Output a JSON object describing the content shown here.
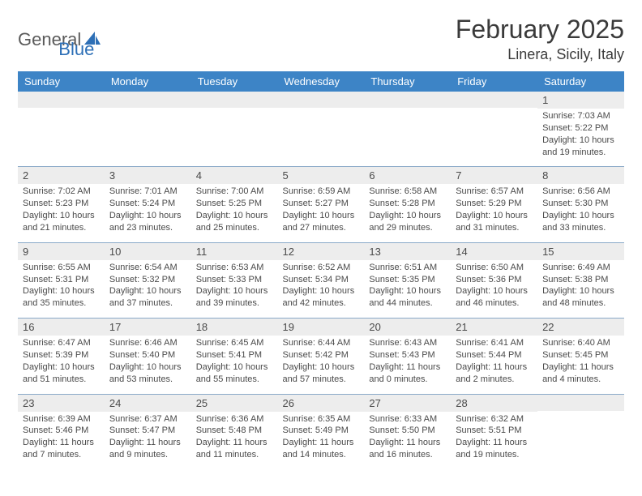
{
  "logo": {
    "part1": "General",
    "part2": "Blue"
  },
  "title": "February 2025",
  "location": "Linera, Sicily, Italy",
  "colors": {
    "header_bg": "#3d84c6",
    "header_fg": "#ffffff",
    "daynum_bg": "#ededed",
    "rule": "#8aa9c8",
    "logo_blue": "#2d6fb6",
    "logo_gray": "#5a5a5a"
  },
  "day_names": [
    "Sunday",
    "Monday",
    "Tuesday",
    "Wednesday",
    "Thursday",
    "Friday",
    "Saturday"
  ],
  "weeks": [
    [
      {
        "n": "",
        "sr": "",
        "ss": "",
        "dl": ""
      },
      {
        "n": "",
        "sr": "",
        "ss": "",
        "dl": ""
      },
      {
        "n": "",
        "sr": "",
        "ss": "",
        "dl": ""
      },
      {
        "n": "",
        "sr": "",
        "ss": "",
        "dl": ""
      },
      {
        "n": "",
        "sr": "",
        "ss": "",
        "dl": ""
      },
      {
        "n": "",
        "sr": "",
        "ss": "",
        "dl": ""
      },
      {
        "n": "1",
        "sr": "Sunrise: 7:03 AM",
        "ss": "Sunset: 5:22 PM",
        "dl": "Daylight: 10 hours and 19 minutes."
      }
    ],
    [
      {
        "n": "2",
        "sr": "Sunrise: 7:02 AM",
        "ss": "Sunset: 5:23 PM",
        "dl": "Daylight: 10 hours and 21 minutes."
      },
      {
        "n": "3",
        "sr": "Sunrise: 7:01 AM",
        "ss": "Sunset: 5:24 PM",
        "dl": "Daylight: 10 hours and 23 minutes."
      },
      {
        "n": "4",
        "sr": "Sunrise: 7:00 AM",
        "ss": "Sunset: 5:25 PM",
        "dl": "Daylight: 10 hours and 25 minutes."
      },
      {
        "n": "5",
        "sr": "Sunrise: 6:59 AM",
        "ss": "Sunset: 5:27 PM",
        "dl": "Daylight: 10 hours and 27 minutes."
      },
      {
        "n": "6",
        "sr": "Sunrise: 6:58 AM",
        "ss": "Sunset: 5:28 PM",
        "dl": "Daylight: 10 hours and 29 minutes."
      },
      {
        "n": "7",
        "sr": "Sunrise: 6:57 AM",
        "ss": "Sunset: 5:29 PM",
        "dl": "Daylight: 10 hours and 31 minutes."
      },
      {
        "n": "8",
        "sr": "Sunrise: 6:56 AM",
        "ss": "Sunset: 5:30 PM",
        "dl": "Daylight: 10 hours and 33 minutes."
      }
    ],
    [
      {
        "n": "9",
        "sr": "Sunrise: 6:55 AM",
        "ss": "Sunset: 5:31 PM",
        "dl": "Daylight: 10 hours and 35 minutes."
      },
      {
        "n": "10",
        "sr": "Sunrise: 6:54 AM",
        "ss": "Sunset: 5:32 PM",
        "dl": "Daylight: 10 hours and 37 minutes."
      },
      {
        "n": "11",
        "sr": "Sunrise: 6:53 AM",
        "ss": "Sunset: 5:33 PM",
        "dl": "Daylight: 10 hours and 39 minutes."
      },
      {
        "n": "12",
        "sr": "Sunrise: 6:52 AM",
        "ss": "Sunset: 5:34 PM",
        "dl": "Daylight: 10 hours and 42 minutes."
      },
      {
        "n": "13",
        "sr": "Sunrise: 6:51 AM",
        "ss": "Sunset: 5:35 PM",
        "dl": "Daylight: 10 hours and 44 minutes."
      },
      {
        "n": "14",
        "sr": "Sunrise: 6:50 AM",
        "ss": "Sunset: 5:36 PM",
        "dl": "Daylight: 10 hours and 46 minutes."
      },
      {
        "n": "15",
        "sr": "Sunrise: 6:49 AM",
        "ss": "Sunset: 5:38 PM",
        "dl": "Daylight: 10 hours and 48 minutes."
      }
    ],
    [
      {
        "n": "16",
        "sr": "Sunrise: 6:47 AM",
        "ss": "Sunset: 5:39 PM",
        "dl": "Daylight: 10 hours and 51 minutes."
      },
      {
        "n": "17",
        "sr": "Sunrise: 6:46 AM",
        "ss": "Sunset: 5:40 PM",
        "dl": "Daylight: 10 hours and 53 minutes."
      },
      {
        "n": "18",
        "sr": "Sunrise: 6:45 AM",
        "ss": "Sunset: 5:41 PM",
        "dl": "Daylight: 10 hours and 55 minutes."
      },
      {
        "n": "19",
        "sr": "Sunrise: 6:44 AM",
        "ss": "Sunset: 5:42 PM",
        "dl": "Daylight: 10 hours and 57 minutes."
      },
      {
        "n": "20",
        "sr": "Sunrise: 6:43 AM",
        "ss": "Sunset: 5:43 PM",
        "dl": "Daylight: 11 hours and 0 minutes."
      },
      {
        "n": "21",
        "sr": "Sunrise: 6:41 AM",
        "ss": "Sunset: 5:44 PM",
        "dl": "Daylight: 11 hours and 2 minutes."
      },
      {
        "n": "22",
        "sr": "Sunrise: 6:40 AM",
        "ss": "Sunset: 5:45 PM",
        "dl": "Daylight: 11 hours and 4 minutes."
      }
    ],
    [
      {
        "n": "23",
        "sr": "Sunrise: 6:39 AM",
        "ss": "Sunset: 5:46 PM",
        "dl": "Daylight: 11 hours and 7 minutes."
      },
      {
        "n": "24",
        "sr": "Sunrise: 6:37 AM",
        "ss": "Sunset: 5:47 PM",
        "dl": "Daylight: 11 hours and 9 minutes."
      },
      {
        "n": "25",
        "sr": "Sunrise: 6:36 AM",
        "ss": "Sunset: 5:48 PM",
        "dl": "Daylight: 11 hours and 11 minutes."
      },
      {
        "n": "26",
        "sr": "Sunrise: 6:35 AM",
        "ss": "Sunset: 5:49 PM",
        "dl": "Daylight: 11 hours and 14 minutes."
      },
      {
        "n": "27",
        "sr": "Sunrise: 6:33 AM",
        "ss": "Sunset: 5:50 PM",
        "dl": "Daylight: 11 hours and 16 minutes."
      },
      {
        "n": "28",
        "sr": "Sunrise: 6:32 AM",
        "ss": "Sunset: 5:51 PM",
        "dl": "Daylight: 11 hours and 19 minutes."
      },
      {
        "n": "",
        "sr": "",
        "ss": "",
        "dl": ""
      }
    ]
  ]
}
